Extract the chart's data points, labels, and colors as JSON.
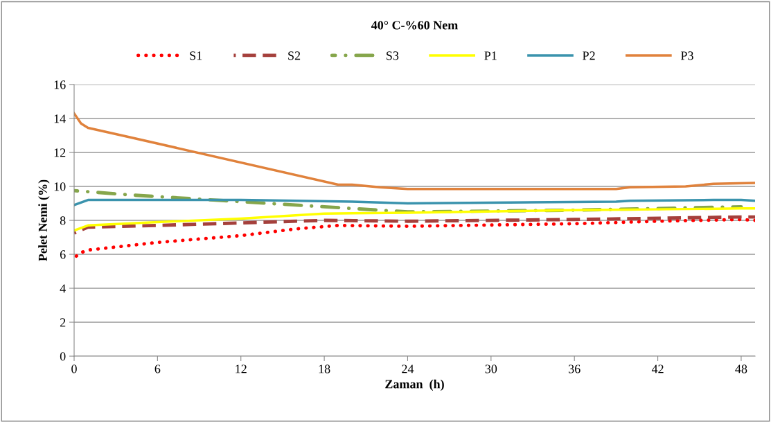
{
  "chart_data": {
    "type": "line",
    "title": "40° C-%60 Nem",
    "xlabel": "Zaman  (h)",
    "ylabel": "Pelet Nemi (%)",
    "xlim": [
      0,
      49
    ],
    "xticks": [
      0,
      6,
      12,
      18,
      24,
      30,
      36,
      42,
      48
    ],
    "ylim": [
      0,
      16
    ],
    "yticks": [
      0,
      2,
      4,
      6,
      8,
      10,
      12,
      14,
      16
    ],
    "grid": "y",
    "legend": "top",
    "series": [
      {
        "name": "S1",
        "color": "#ff0000",
        "line_style": "dotted",
        "x": [
          0,
          0.5,
          1,
          6,
          12,
          16,
          19,
          24,
          36,
          42,
          48,
          49
        ],
        "values": [
          5.8,
          6.1,
          6.25,
          6.7,
          7.1,
          7.5,
          7.7,
          7.65,
          7.8,
          7.95,
          8.05,
          8.0
        ]
      },
      {
        "name": "S2",
        "color": "#a5403c",
        "line_style": "dashed",
        "x": [
          0,
          1,
          6,
          12,
          18,
          24,
          36,
          48,
          49
        ],
        "values": [
          7.25,
          7.6,
          7.7,
          7.85,
          8.0,
          7.95,
          8.05,
          8.2,
          8.2
        ]
      },
      {
        "name": "S3",
        "color": "#86a64b",
        "line_style": "dashdot",
        "x": [
          0,
          4,
          10,
          14,
          18,
          22,
          24,
          30,
          36,
          42,
          48
        ],
        "values": [
          9.75,
          9.5,
          9.2,
          9.0,
          8.8,
          8.6,
          8.5,
          8.55,
          8.6,
          8.7,
          8.8
        ]
      },
      {
        "name": "P1",
        "color": "#ffff00",
        "line_style": "solid",
        "x": [
          0,
          1,
          6,
          12,
          18,
          24,
          36,
          48,
          49
        ],
        "values": [
          7.4,
          7.7,
          7.9,
          8.1,
          8.4,
          8.45,
          8.6,
          8.7,
          8.7
        ]
      },
      {
        "name": "P2",
        "color": "#3a93ad",
        "line_style": "solid",
        "x": [
          0,
          1,
          12,
          20,
          24,
          39,
          40,
          46,
          48,
          49
        ],
        "values": [
          8.9,
          9.2,
          9.2,
          9.1,
          9.0,
          9.1,
          9.15,
          9.2,
          9.2,
          9.15
        ]
      },
      {
        "name": "P3",
        "color": "#e0823c",
        "line_style": "solid",
        "x": [
          0,
          0.5,
          1,
          4,
          19,
          20,
          22,
          24,
          39,
          40,
          44,
          46,
          49
        ],
        "values": [
          14.3,
          13.7,
          13.45,
          12.9,
          10.1,
          10.1,
          9.95,
          9.85,
          9.85,
          9.95,
          10.0,
          10.15,
          10.2
        ]
      }
    ]
  }
}
